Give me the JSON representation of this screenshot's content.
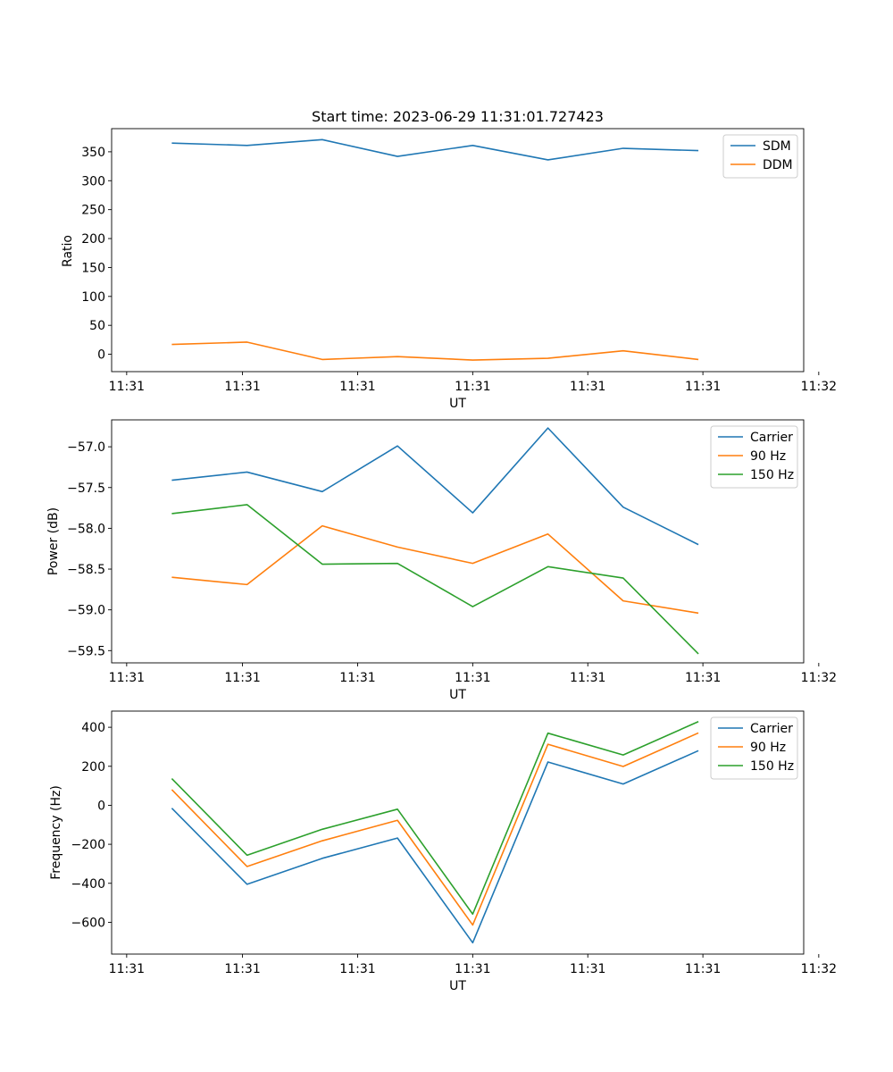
{
  "chart_data": [
    {
      "type": "line",
      "title": "Start time: 2023-06-29 11:31:01.727423",
      "xlabel": "UT",
      "ylabel": "Ratio",
      "x": [
        1,
        2,
        3,
        4,
        5,
        6,
        7,
        8
      ],
      "xlim": [
        0.2,
        9.4
      ],
      "xtick_values": [
        0.4,
        1.94,
        3.47,
        5.0,
        6.53,
        8.06,
        9.6
      ],
      "xtick_labels": [
        "11:31",
        "11:31",
        "11:31",
        "11:31",
        "11:31",
        "11:31",
        "11:32"
      ],
      "ylim": [
        -30,
        390
      ],
      "yticks": [
        0,
        50,
        100,
        150,
        200,
        250,
        300,
        350
      ],
      "grid": false,
      "legend_position": "top-right",
      "series": [
        {
          "name": "SDM",
          "color": "#1f77b4",
          "values": [
            365,
            361,
            371,
            342,
            361,
            336,
            356,
            352
          ]
        },
        {
          "name": "DDM",
          "color": "#ff7f0e",
          "values": [
            17,
            21,
            -9,
            -4,
            -10,
            -7,
            6,
            -9
          ]
        }
      ]
    },
    {
      "type": "line",
      "title": "",
      "xlabel": "UT",
      "ylabel": "Power (dB)",
      "x": [
        1,
        2,
        3,
        4,
        5,
        6,
        7,
        8
      ],
      "xlim": [
        0.2,
        9.4
      ],
      "xtick_values": [
        0.4,
        1.94,
        3.47,
        5.0,
        6.53,
        8.06,
        9.6
      ],
      "xtick_labels": [
        "11:31",
        "11:31",
        "11:31",
        "11:31",
        "11:31",
        "11:31",
        "11:32"
      ],
      "ylim": [
        -59.65,
        -56.67
      ],
      "yticks": [
        -59.5,
        -59.0,
        -58.5,
        -58.0,
        -57.5,
        -57.0
      ],
      "ytick_labels": [
        "−59.5",
        "−59.0",
        "−58.5",
        "−58.0",
        "−57.5",
        "−57.0"
      ],
      "grid": false,
      "legend_position": "top-right",
      "series": [
        {
          "name": "Carrier",
          "color": "#1f77b4",
          "values": [
            -57.41,
            -57.31,
            -57.55,
            -56.99,
            -57.81,
            -56.77,
            -57.74,
            -58.2
          ]
        },
        {
          "name": "90 Hz",
          "color": "#ff7f0e",
          "values": [
            -58.6,
            -58.69,
            -57.97,
            -58.23,
            -58.43,
            -58.07,
            -58.89,
            -59.04
          ]
        },
        {
          "name": "150 Hz",
          "color": "#2ca02c",
          "values": [
            -57.82,
            -57.71,
            -58.44,
            -58.43,
            -58.96,
            -58.47,
            -58.61,
            -59.54
          ]
        }
      ]
    },
    {
      "type": "line",
      "title": "",
      "xlabel": "UT",
      "ylabel": "Frequency (Hz)",
      "x": [
        1,
        2,
        3,
        4,
        5,
        6,
        7,
        8
      ],
      "xlim": [
        0.2,
        9.4
      ],
      "xtick_values": [
        0.4,
        1.94,
        3.47,
        5.0,
        6.53,
        8.06,
        9.6
      ],
      "xtick_labels": [
        "11:31",
        "11:31",
        "11:31",
        "11:31",
        "11:31",
        "11:31",
        "11:32"
      ],
      "ylim": [
        -763,
        483
      ],
      "yticks": [
        -600,
        -400,
        -200,
        0,
        200,
        400
      ],
      "ytick_labels": [
        "−600",
        "−400",
        "−200",
        "0",
        "200",
        "400"
      ],
      "grid": false,
      "legend_position": "top-right",
      "series": [
        {
          "name": "Carrier",
          "color": "#1f77b4",
          "values": [
            -15,
            -405,
            -272,
            -168,
            -705,
            222,
            109,
            280
          ]
        },
        {
          "name": "90 Hz",
          "color": "#ff7f0e",
          "values": [
            80,
            -314,
            -182,
            -77,
            -614,
            313,
            199,
            371
          ]
        },
        {
          "name": "150 Hz",
          "color": "#2ca02c",
          "values": [
            137,
            -256,
            -123,
            -20,
            -558,
            370,
            258,
            429
          ]
        }
      ]
    }
  ]
}
